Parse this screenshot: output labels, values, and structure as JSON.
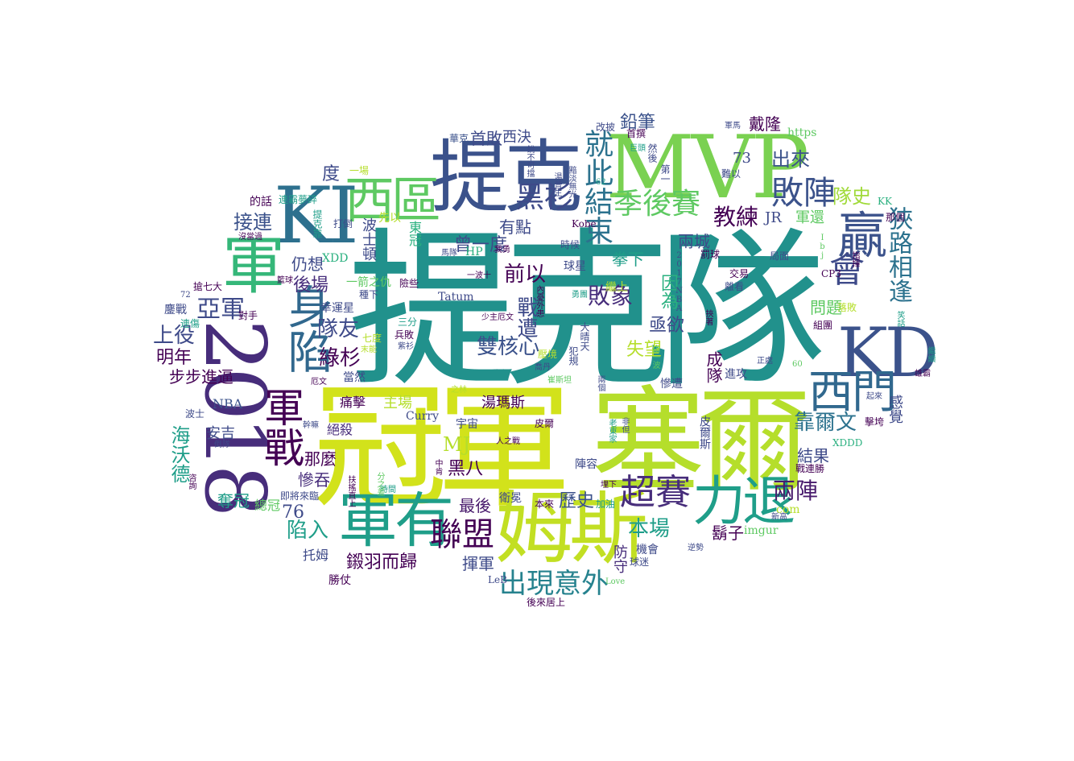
{
  "palette": {
    "teal": "#21918c",
    "green": "#5ec962",
    "lime": "#b5de2b",
    "yellow": "#fde725",
    "navy": "#3b528b",
    "indigo": "#31688e",
    "purple": "#440154",
    "violet": "#472d7b",
    "aqua": "#2ab07f",
    "sea": "#1f9e89"
  },
  "words": [
    {
      "text": "提克隊"
    },
    {
      "text": "冠軍"
    },
    {
      "text": "塞爾"
    },
    {
      "text": "姆斯"
    },
    {
      "text": "MVP"
    },
    {
      "text": "提克"
    },
    {
      "text": "2018"
    },
    {
      "text": "KI"
    },
    {
      "text": "KD"
    },
    {
      "text": "軍有"
    },
    {
      "text": "軍"
    },
    {
      "text": "西區"
    },
    {
      "text": "力退"
    },
    {
      "text": "身陷"
    },
    {
      "text": "軍戰"
    },
    {
      "text": "西門"
    },
    {
      "text": "贏"
    },
    {
      "text": "會"
    },
    {
      "text": "季後賽"
    },
    {
      "text": "敗陣"
    },
    {
      "text": "黑衫"
    },
    {
      "text": "聯盟"
    },
    {
      "text": "超賽"
    },
    {
      "text": "就此結束"
    },
    {
      "text": "狹路相逢"
    },
    {
      "text": "出現意外"
    },
    {
      "text": "教練"
    },
    {
      "text": "雙核心"
    },
    {
      "text": "戰遭"
    },
    {
      "text": "敗象"
    },
    {
      "text": "曾一度"
    },
    {
      "text": "前以"
    },
    {
      "text": "靠爾文"
    },
    {
      "text": "兩陣"
    },
    {
      "text": "出來"
    },
    {
      "text": "隊史"
    },
    {
      "text": "首敗"
    },
    {
      "text": "鉛筆"
    },
    {
      "text": "戴隆"
    },
    {
      "text": "有點"
    },
    {
      "text": "華克"
    },
    {
      "text": "西決"
    },
    {
      "text": "度"
    },
    {
      "text": "接連"
    },
    {
      "text": "仍想"
    },
    {
      "text": "後場"
    },
    {
      "text": "亞軍"
    },
    {
      "text": "上役"
    },
    {
      "text": "明年"
    },
    {
      "text": "步步進逼"
    },
    {
      "text": "隊友"
    },
    {
      "text": "綠杉"
    },
    {
      "text": "NBA"
    },
    {
      "text": "海沃德"
    },
    {
      "text": "安吉"
    },
    {
      "text": "奪冠"
    },
    {
      "text": "總冠"
    },
    {
      "text": "那麼"
    },
    {
      "text": "慘吞"
    },
    {
      "text": "陷入"
    },
    {
      "text": "76"
    },
    {
      "text": "MJ"
    },
    {
      "text": "黑八"
    },
    {
      "text": "最後"
    },
    {
      "text": "歷史"
    },
    {
      "text": "本場"
    },
    {
      "text": "揮軍"
    },
    {
      "text": "鎩羽而歸"
    },
    {
      "text": "勝仗"
    },
    {
      "text": "托姆"
    },
    {
      "text": "失望"
    },
    {
      "text": "亟欲"
    },
    {
      "text": "因為"
    },
    {
      "text": "兩城"
    },
    {
      "text": "拳下"
    },
    {
      "text": "JR"
    },
    {
      "text": "73"
    },
    {
      "text": "軍還"
    },
    {
      "text": "問題"
    },
    {
      "text": "成隊"
    },
    {
      "text": "結果"
    },
    {
      "text": "鬍子"
    },
    {
      "text": "進攻"
    },
    {
      "text": "慘遭"
    },
    {
      "text": "陣容"
    },
    {
      "text": "防守"
    },
    {
      "text": "機會"
    },
    {
      "text": "https"
    },
    {
      "text": "imgur"
    },
    {
      "text": "com"
    },
    {
      "text": "XDDD"
    },
    {
      "text": "XDD"
    },
    {
      "text": "Curry"
    },
    {
      "text": "Tatum"
    },
    {
      "text": "Kobe"
    },
    {
      "text": "LeB"
    },
    {
      "text": "Love"
    },
    {
      "text": "HP"
    },
    {
      "text": "主場"
    },
    {
      "text": "絕殺"
    },
    {
      "text": "湯瑪斯"
    },
    {
      "text": "痛擊"
    },
    {
      "text": "當然"
    },
    {
      "text": "宇宙"
    },
    {
      "text": "衛冕"
    },
    {
      "text": "皮爾"
    },
    {
      "text": "波士頓"
    },
    {
      "text": "一箭之仇"
    },
    {
      "text": "幸運星"
    },
    {
      "text": "時候"
    },
    {
      "text": "球星"
    },
    {
      "text": "繼上"
    },
    {
      "text": "首撰"
    },
    {
      "text": "然後"
    },
    {
      "text": "局面"
    },
    {
      "text": "組團"
    },
    {
      "text": "落敗"
    },
    {
      "text": "那個"
    },
    {
      "text": "戰連勝"
    },
    {
      "text": "後來居上"
    },
    {
      "text": "連霸夢碎"
    },
    {
      "text": "搶七大"
    },
    {
      "text": "鏖戰"
    },
    {
      "text": "的話"
    },
    {
      "text": "打倒"
    },
    {
      "text": "先以"
    },
    {
      "text": "一場"
    },
    {
      "text": "KK"
    },
    {
      "text": "CP3"
    },
    {
      "text": "改披"
    },
    {
      "text": "軍馬"
    },
    {
      "text": "巨頭"
    },
    {
      "text": "難以"
    },
    {
      "text": "罰球"
    },
    {
      "text": "交易"
    },
    {
      "text": "離看"
    },
    {
      "text": "正處"
    },
    {
      "text": "60"
    },
    {
      "text": "62"
    },
    {
      "text": "72"
    },
    {
      "text": "連傷"
    },
    {
      "text": "對手"
    },
    {
      "text": "籃球"
    },
    {
      "text": "種下"
    },
    {
      "text": "險些"
    },
    {
      "text": "三分"
    },
    {
      "text": "兵敗"
    },
    {
      "text": "七度"
    },
    {
      "text": "末能"
    },
    {
      "text": "紫衫"
    },
    {
      "text": "壓境"
    },
    {
      "text": "喬丹"
    },
    {
      "text": "犯規"
    },
    {
      "text": "大晴天"
    },
    {
      "text": "勇團"
    },
    {
      "text": "我勇"
    },
    {
      "text": "馬隊"
    },
    {
      "text": "少主厄文"
    },
    {
      "text": "內憂外患"
    },
    {
      "text": "一波十"
    },
    {
      "text": "之林"
    },
    {
      "text": "厄文"
    },
    {
      "text": "幹嘛"
    },
    {
      "text": "人之戰"
    },
    {
      "text": "扶搖直上"
    },
    {
      "text": "即將來臨"
    },
    {
      "text": "時間"
    },
    {
      "text": "分之差"
    },
    {
      "text": "中肯"
    },
    {
      "text": "本來"
    },
    {
      "text": "加油"
    },
    {
      "text": "埋下"
    },
    {
      "text": "逆勢"
    },
    {
      "text": "新高"
    },
    {
      "text": "球迷"
    },
    {
      "text": "兩個"
    },
    {
      "text": "老東家"
    },
    {
      "text": "非但"
    },
    {
      "text": "皮爾斯"
    },
    {
      "text": "由一波"
    },
    {
      "text": "崔斯坦"
    },
    {
      "text": "挾著"
    },
    {
      "text": "倒隊"
    },
    {
      "text": "咨詢"
    },
    {
      "text": "波士"
    },
    {
      "text": "感覺"
    },
    {
      "text": "雄霸"
    },
    {
      "text": "擊垮"
    },
    {
      "text": "起來"
    },
    {
      "text": "笑話"
    },
    {
      "text": "指揮"
    },
    {
      "text": "繼續"
    },
    {
      "text": "東冠"
    },
    {
      "text": "提克靠"
    },
    {
      "text": "沒當過"
    },
    {
      "text": "湯普生"
    },
    {
      "text": "銳不可擋"
    },
    {
      "text": "黯淡無光"
    },
    {
      "text": "第一"
    },
    {
      "text": "2017NBA"
    },
    {
      "text": "Ibj"
    }
  ]
}
